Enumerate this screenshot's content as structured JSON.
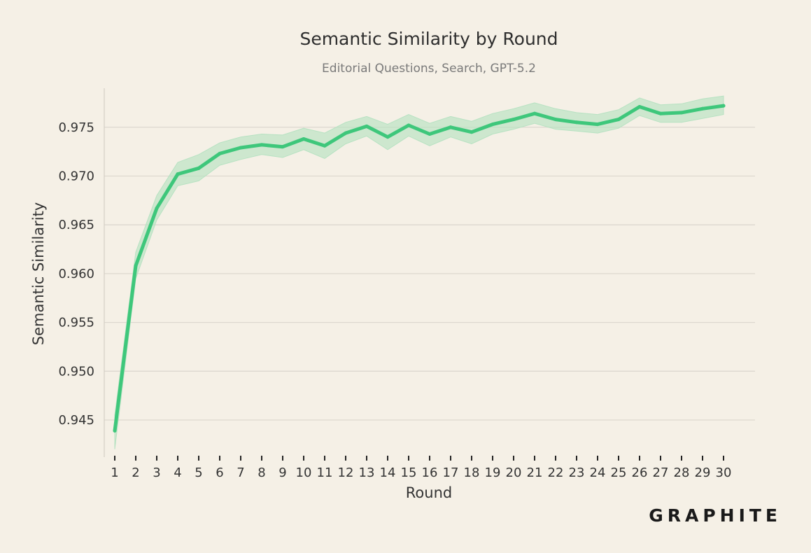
{
  "colors": {
    "background": "#f5f0e6",
    "line": "#3ec77b",
    "band": "#b7e2c2",
    "grid": "#ddd8cf"
  },
  "logo_text": "GRAPHITE",
  "chart_data": {
    "type": "line",
    "title": "Semantic Similarity by Round",
    "subtitle": "Editorial Questions, Search, GPT-5.2",
    "xlabel": "Round",
    "ylabel": "Semantic Similarity",
    "x": [
      1,
      2,
      3,
      4,
      5,
      6,
      7,
      8,
      9,
      10,
      11,
      12,
      13,
      14,
      15,
      16,
      17,
      18,
      19,
      20,
      21,
      22,
      23,
      24,
      25,
      26,
      27,
      28,
      29,
      30
    ],
    "y": [
      0.9439,
      0.9608,
      0.9667,
      0.9702,
      0.9708,
      0.9723,
      0.9729,
      0.9732,
      0.973,
      0.9738,
      0.9731,
      0.9744,
      0.9751,
      0.974,
      0.9752,
      0.9743,
      0.975,
      0.9745,
      0.9753,
      0.9758,
      0.9764,
      0.9758,
      0.9755,
      0.9753,
      0.9758,
      0.9771,
      0.9764,
      0.9765,
      0.9769,
      0.9772
    ],
    "lower": [
      0.942,
      0.9595,
      0.9655,
      0.969,
      0.9695,
      0.9711,
      0.9717,
      0.9722,
      0.9719,
      0.9727,
      0.9718,
      0.9733,
      0.9741,
      0.9727,
      0.9741,
      0.9731,
      0.974,
      0.9733,
      0.9743,
      0.9748,
      0.9754,
      0.9748,
      0.9746,
      0.9744,
      0.9749,
      0.9762,
      0.9755,
      0.9755,
      0.9759,
      0.9763
    ],
    "upper": [
      0.9455,
      0.9622,
      0.968,
      0.9714,
      0.9722,
      0.9734,
      0.974,
      0.9743,
      0.9742,
      0.9749,
      0.9744,
      0.9755,
      0.9761,
      0.9753,
      0.9763,
      0.9754,
      0.9761,
      0.9756,
      0.9764,
      0.9769,
      0.9775,
      0.9769,
      0.9765,
      0.9763,
      0.9768,
      0.978,
      0.9773,
      0.9774,
      0.9779,
      0.9782
    ],
    "y_ticks": [
      "0.945",
      "0.950",
      "0.955",
      "0.960",
      "0.965",
      "0.970",
      "0.975"
    ],
    "ylim": [
      0.9412,
      0.979
    ],
    "xlim": [
      0.5,
      31.5
    ],
    "grid": true,
    "legend": "none"
  }
}
